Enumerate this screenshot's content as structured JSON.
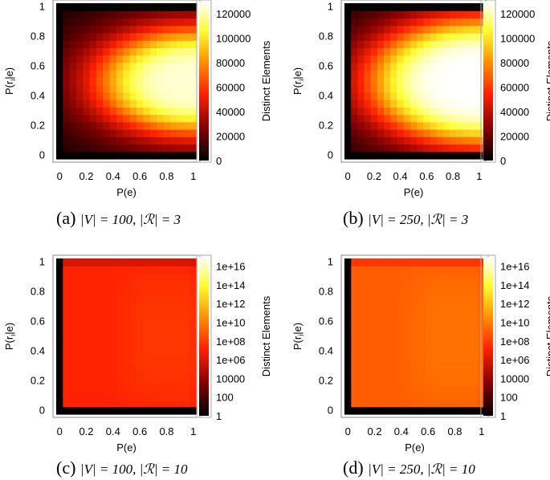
{
  "colors": {
    "colormap": [
      "#000000",
      "#800000",
      "#ff2000",
      "#ff9000",
      "#ffff30",
      "#ffffff"
    ],
    "frame": "#000000"
  },
  "chart_data": [
    {
      "type": "heatmap",
      "caption_letter": "(a)",
      "caption_math": "|V| = 100, |ℛ| = 3",
      "xlabel": "P(e)",
      "ylabel": "P(r_i|e)",
      "ylabel_main": "P(r",
      "ylabel_sub": "i",
      "ylabel_tail": "|e)",
      "x_ticks": [
        "0",
        "0.2",
        "0.4",
        "0.6",
        "0.8",
        "1"
      ],
      "y_ticks": [
        "0",
        "0.2",
        "0.4",
        "0.6",
        "0.8",
        "1"
      ],
      "xlim": [
        0,
        1
      ],
      "ylim": [
        0,
        1
      ],
      "grid": "21x21",
      "colorbar_label": "Distinct Elements",
      "colorbar_scale": "linear",
      "colorbar_range": [
        0,
        130000
      ],
      "colorbar_ticks": [
        "0",
        "20000",
        "40000",
        "60000",
        "80000",
        "100000",
        "120000"
      ],
      "colorbar_tick_values": [
        0,
        20000,
        40000,
        60000,
        80000,
        100000,
        120000
      ],
      "peak_value": 125000,
      "peak_x": 1.0,
      "peak_y": 0.5,
      "half_width_x": 0.72,
      "half_width_y": 0.36,
      "shape": 2.2
    },
    {
      "type": "heatmap",
      "caption_letter": "(b)",
      "caption_math": "|V| = 250, |ℛ| = 3",
      "xlabel": "P(e)",
      "ylabel": "P(r_i|e)",
      "ylabel_main": "P(r",
      "ylabel_sub": "i",
      "ylabel_tail": "|e)",
      "x_ticks": [
        "0",
        "0.2",
        "0.4",
        "0.6",
        "0.8",
        "1"
      ],
      "y_ticks": [
        "0",
        "0.2",
        "0.4",
        "0.6",
        "0.8",
        "1"
      ],
      "xlim": [
        0,
        1
      ],
      "ylim": [
        0,
        1
      ],
      "grid": "21x21",
      "colorbar_label": "Distinct Elements",
      "colorbar_scale": "linear",
      "colorbar_range": [
        0,
        130000
      ],
      "colorbar_ticks": [
        "0",
        "20000",
        "40000",
        "60000",
        "80000",
        "100000",
        "120000"
      ],
      "colorbar_tick_values": [
        0,
        20000,
        40000,
        60000,
        80000,
        100000,
        120000
      ],
      "peak_value": 130000,
      "peak_x": 1.0,
      "peak_y": 0.5,
      "half_width_x": 0.85,
      "half_width_y": 0.43,
      "shape": 2.6
    },
    {
      "type": "heatmap",
      "caption_letter": "(c)",
      "caption_math": "|V| = 100, |ℛ| = 10",
      "xlabel": "P(e)",
      "ylabel": "P(r_i|e)",
      "ylabel_main": "P(r",
      "ylabel_sub": "i",
      "ylabel_tail": "|e)",
      "x_ticks": [
        "0",
        "0.2",
        "0.4",
        "0.6",
        "0.8",
        "1"
      ],
      "y_ticks": [
        "0",
        "0.2",
        "0.4",
        "0.6",
        "0.8",
        "1"
      ],
      "xlim": [
        0,
        1
      ],
      "ylim": [
        0,
        1
      ],
      "grid": "21x21",
      "colorbar_label": "Distinct Elements",
      "colorbar_scale": "log",
      "colorbar_range": [
        1,
        1e+17
      ],
      "colorbar_ticks": [
        "1",
        "100",
        "10000",
        "1e+06",
        "1e+08",
        "1e+10",
        "1e+12",
        "1e+14",
        "1e+16"
      ],
      "colorbar_tick_values": [
        0,
        2,
        4,
        6,
        8,
        10,
        12,
        14,
        16
      ],
      "interior_log10": 7.2,
      "plateau_log10": 7.8,
      "edge_log10": 0
    },
    {
      "type": "heatmap",
      "caption_letter": "(d)",
      "caption_math": "|V| = 250, |ℛ| = 10",
      "xlabel": "P(e)",
      "ylabel": "P(r_i|e)",
      "ylabel_main": "P(r",
      "ylabel_sub": "i",
      "ylabel_tail": "|e)",
      "x_ticks": [
        "0",
        "0.2",
        "0.4",
        "0.6",
        "0.8",
        "1"
      ],
      "y_ticks": [
        "0",
        "0.2",
        "0.4",
        "0.6",
        "0.8",
        "1"
      ],
      "xlim": [
        0,
        1
      ],
      "ylim": [
        0,
        1
      ],
      "grid": "21x21",
      "colorbar_label": "Distinct Elements",
      "colorbar_scale": "log",
      "colorbar_range": [
        1,
        1e+17
      ],
      "colorbar_ticks": [
        "1",
        "100",
        "10000",
        "1e+06",
        "1e+08",
        "1e+10",
        "1e+12",
        "1e+14",
        "1e+16"
      ],
      "colorbar_tick_values": [
        0,
        2,
        4,
        6,
        8,
        10,
        12,
        14,
        16
      ],
      "interior_log10": 9.0,
      "plateau_log10": 9.6,
      "edge_log10": 0
    }
  ]
}
